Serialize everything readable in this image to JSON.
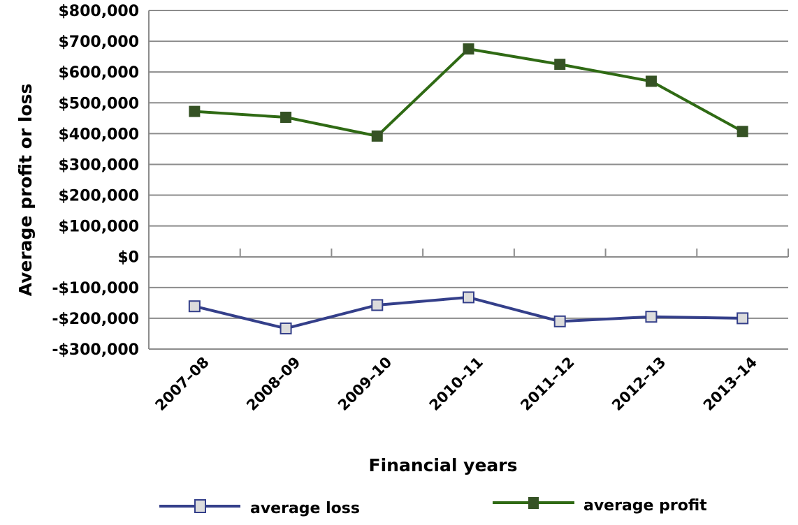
{
  "chart_data": {
    "type": "line",
    "title": "",
    "xlabel": "Financial years",
    "ylabel": "Average profit or loss",
    "categories": [
      "2007–08",
      "2008–09",
      "2009–10",
      "2010–11",
      "2011–12",
      "2012–13",
      "2013–14"
    ],
    "series": [
      {
        "name": "average loss",
        "color": "#343f8a",
        "marker": "square-hollow",
        "marker_fill": "#dcdcdc",
        "values": [
          -161000,
          -233000,
          -157000,
          -132000,
          -210000,
          -195000,
          -200000
        ]
      },
      {
        "name": "average profit",
        "color": "#2f6a14",
        "marker": "square-filled",
        "marker_fill": "#355224",
        "values": [
          472000,
          453000,
          392000,
          675000,
          625000,
          570000,
          407000
        ]
      }
    ],
    "ylim": [
      -300000,
      800000
    ],
    "yticks": [
      800000,
      700000,
      600000,
      500000,
      400000,
      300000,
      200000,
      100000,
      0,
      -100000,
      -200000,
      -300000
    ],
    "ytick_labels": [
      "$800,000",
      "$700,000",
      "$600,000",
      "$500,000",
      "$400,000",
      "$300,000",
      "$200,000",
      "$100,000",
      "$0",
      "-$100,000",
      "-$200,000",
      "-$300,000"
    ],
    "grid": true,
    "legend_position": "bottom"
  },
  "axes": {
    "x_title": "Financial years",
    "y_title": "Average profit or loss"
  },
  "legend": {
    "items": [
      {
        "label": "average loss"
      },
      {
        "label": "average profit"
      }
    ]
  }
}
